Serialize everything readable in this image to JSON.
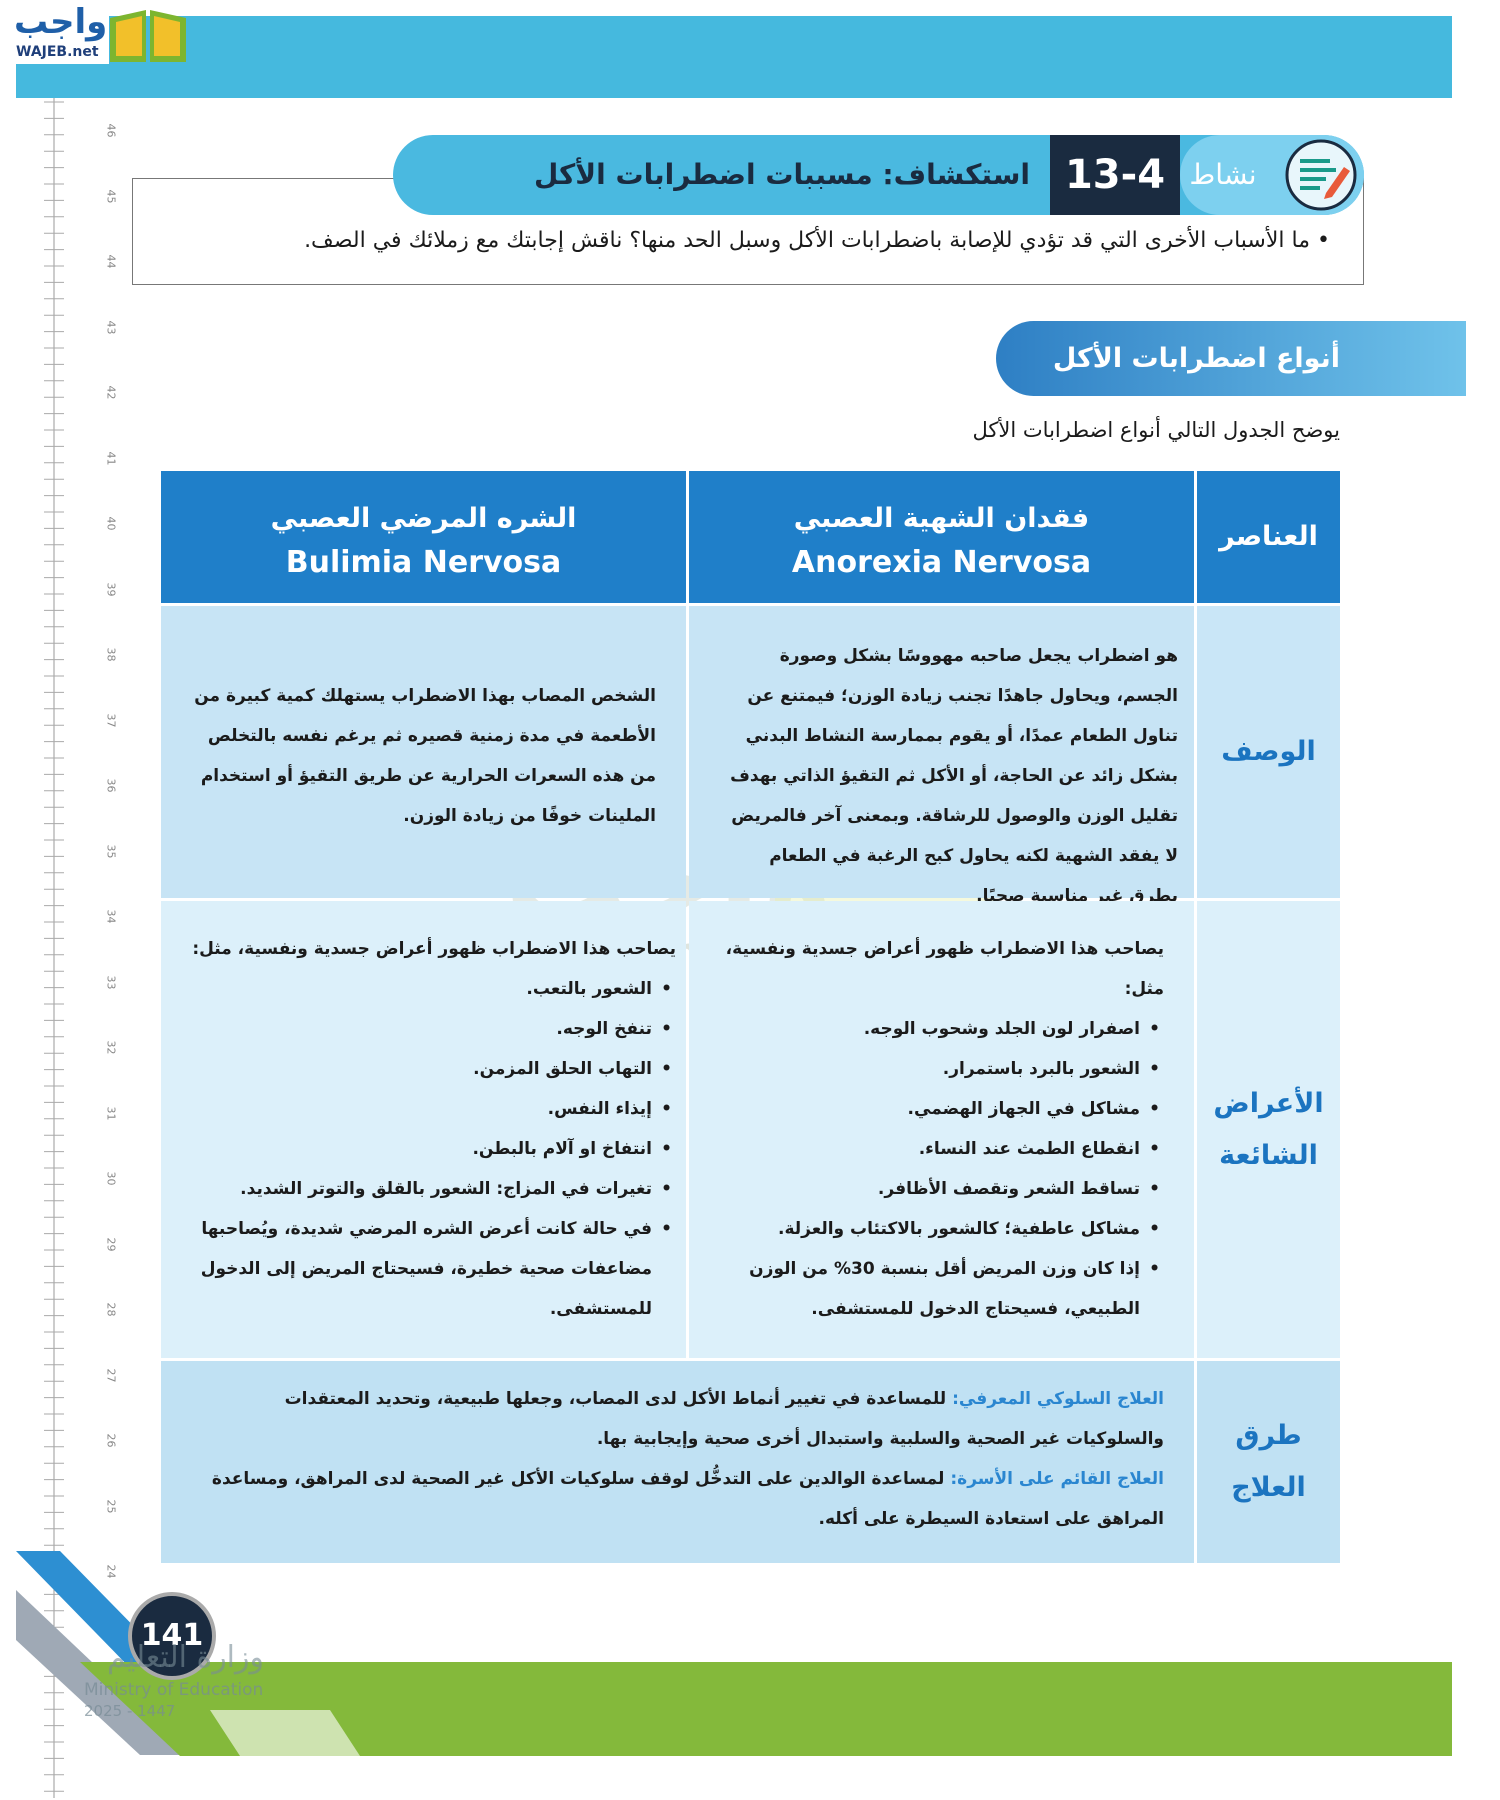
{
  "header": {
    "logo_ar": "واجب",
    "logo_en": "WAJEB.net"
  },
  "ruler": [
    46,
    45,
    44,
    43,
    42,
    41,
    40,
    39,
    38,
    37,
    36,
    35,
    34,
    33,
    32,
    31,
    30,
    29,
    28,
    27,
    26,
    25,
    24
  ],
  "activity": {
    "label": "نشاط",
    "number": "13-4",
    "title": "استكشاف: مسببات اضطرابات الأكل",
    "question": "ما الأسباب الأخرى التي قد تؤدي للإصابة باضطرابات الأكل وسبل الحد منها؟ ناقش إجابتك مع زملائك في الصف."
  },
  "section": {
    "title": "أنواع اضطرابات الأكل",
    "intro": "يوضح الجدول التالي  أنواع اضطرابات الأكل"
  },
  "table": {
    "header": {
      "elements": "العناصر",
      "anorexia_ar": "فقدان الشهية العصبي",
      "anorexia_en": "Anorexia Nervosa",
      "bulimia_ar": "الشره المرضي العصبي",
      "bulimia_en": "Bulimia Nervosa"
    },
    "description": {
      "label": "الوصف",
      "anorexia": "هو اضطراب يجعل صاحبه مهووسًا بشكل وصورة الجسم، ويحاول جاهدًا تجنب زيادة الوزن؛ فيمتنع عن تناول الطعام عمدًا، أو يقوم بممارسة النشاط البدني بشكل زائد عن الحاجة، أو الأكل ثم التقيؤ الذاتي بهدف تقليل الوزن والوصول للرشاقة. وبمعنى آخر فالمريض لا يفقد الشهية لكنه يحاول كبح الرغبة في الطعام بطرق غير مناسبة صحيًا.",
      "bulimia": "الشخص المصاب بهذا الاضطراب يستهلك كمية كبيرة من الأطعمة في مدة زمنية قصيره ثم يرغم نفسه بالتخلص من هذه السعرات الحرارية عن طريق التقيؤ أو استخدام الملينات خوفًا من زيادة الوزن."
    },
    "symptoms": {
      "label": "الأعراض الشائعة",
      "anorexia": {
        "intro": "يصاحب هذا الاضطراب ظهور أعراض جسدية ونفسية، مثل:",
        "items": [
          "اصفرار لون الجلد وشحوب الوجه.",
          "الشعور بالبرد باستمرار.",
          "مشاكل في الجهاز الهضمي.",
          "انقطاع الطمث عند النساء.",
          "تساقط الشعر وتقصف الأظافر.",
          "مشاكل عاطفية؛ كالشعور بالاكتئاب والعزلة.",
          "إذا كان وزن المريض أقل بنسبة 30% من الوزن الطبيعي، فسيحتاج الدخول للمستشفى."
        ]
      },
      "bulimia": {
        "intro": "يصاحب هذا الاضطراب ظهور أعراض جسدية ونفسية، مثل:",
        "items": [
          "الشعور بالتعب.",
          "تنفخ الوجه.",
          "التهاب الحلق المزمن.",
          "إيذاء النفس.",
          "انتفاخ او آلام بالبطن.",
          "تغيرات في المزاج: الشعور بالقلق والتوتر الشديد.",
          "في حالة كانت أعرض الشره المرضي شديدة، ويُصاحبها مضاعفات صحية خطيرة، فسيحتاج المريض إلى الدخول للمستشفى."
        ]
      }
    },
    "treatment": {
      "label": "طرق العلاج",
      "items": [
        {
          "name": "العلاج السلوكي المعرفي:",
          "text": "للمساعدة في تغيير أنماط الأكل لدى المصاب، وجعلها طبيعية، وتحديد المعتقدات والسلوكيات غير الصحية والسلبية واستبدال أخرى صحية وإيجابية بها."
        },
        {
          "name": "العلاج القائم على الأسرة:",
          "text": "لمساعدة الوالدين على التدخُّل لوقف سلوكيات الأكل غير الصحية لدى المراهق، ومساعدة المراهق على استعادة السيطرة على أكله."
        }
      ]
    }
  },
  "footer": {
    "page_number": "141",
    "ministry_ar": "وزارة التعليم",
    "ministry_en": "Ministry of Education",
    "year": "2025 - 1447"
  }
}
